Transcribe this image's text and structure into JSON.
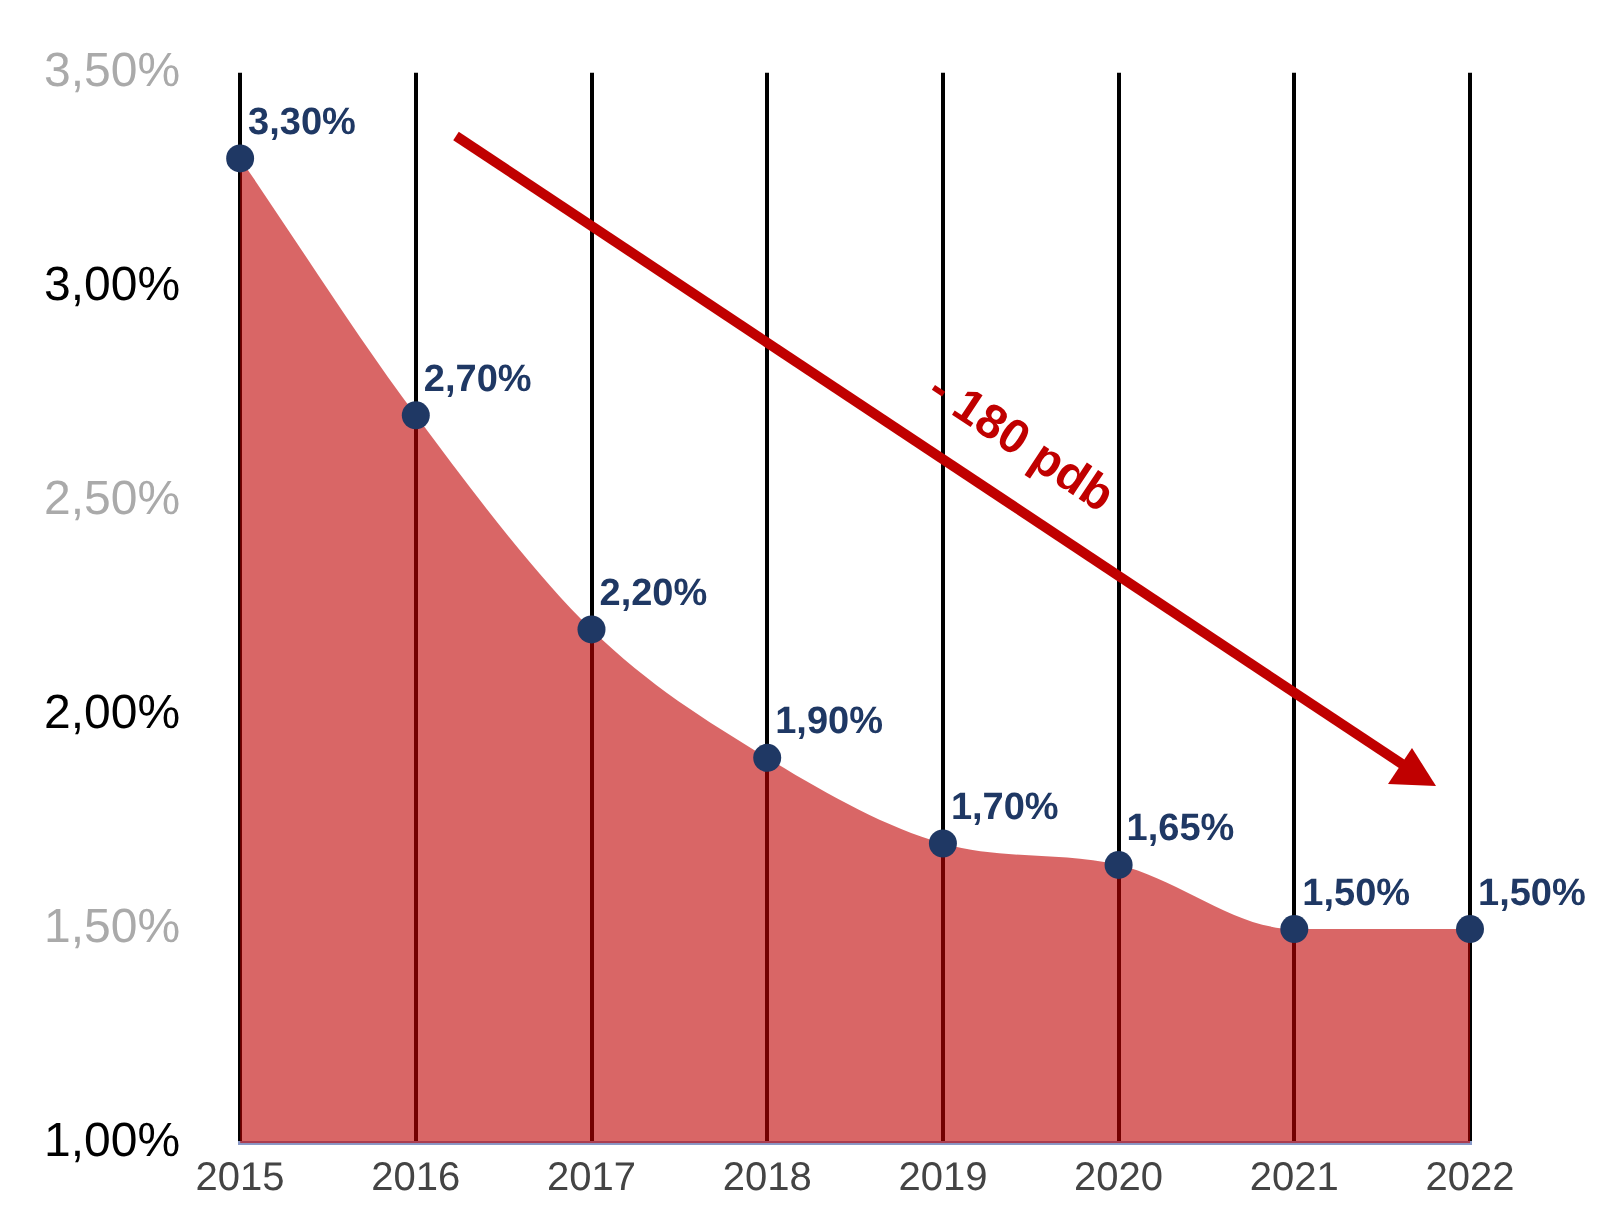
{
  "chart_data": {
    "type": "area",
    "categories": [
      "2015",
      "2016",
      "2017",
      "2018",
      "2019",
      "2020",
      "2021",
      "2022"
    ],
    "series": [
      {
        "color": "#c00000",
        "values": [
          3.3,
          2.7,
          2.2,
          1.9,
          1.7,
          1.65,
          1.5,
          1.5
        ],
        "value_labels": [
          "3,30%",
          "2,70%",
          "2,20%",
          "1,90%",
          "1,70%",
          "1,65%",
          "1,50%",
          "1,50%"
        ]
      }
    ],
    "ylim": [
      1,
      3.5
    ],
    "yticks": [
      {
        "value": 1,
        "label": "1,00%"
      },
      {
        "value": 1.5,
        "label": "1,50%"
      },
      {
        "value": 2,
        "label": "2,00%"
      },
      {
        "value": 2.5,
        "label": "2,50%"
      },
      {
        "value": 3,
        "label": "3,00%"
      },
      {
        "value": 3.5,
        "label": "3,50%"
      }
    ],
    "annotations": [
      "- 180 pdb"
    ],
    "grid": "x",
    "legend": false,
    "marker": "circle"
  }
}
